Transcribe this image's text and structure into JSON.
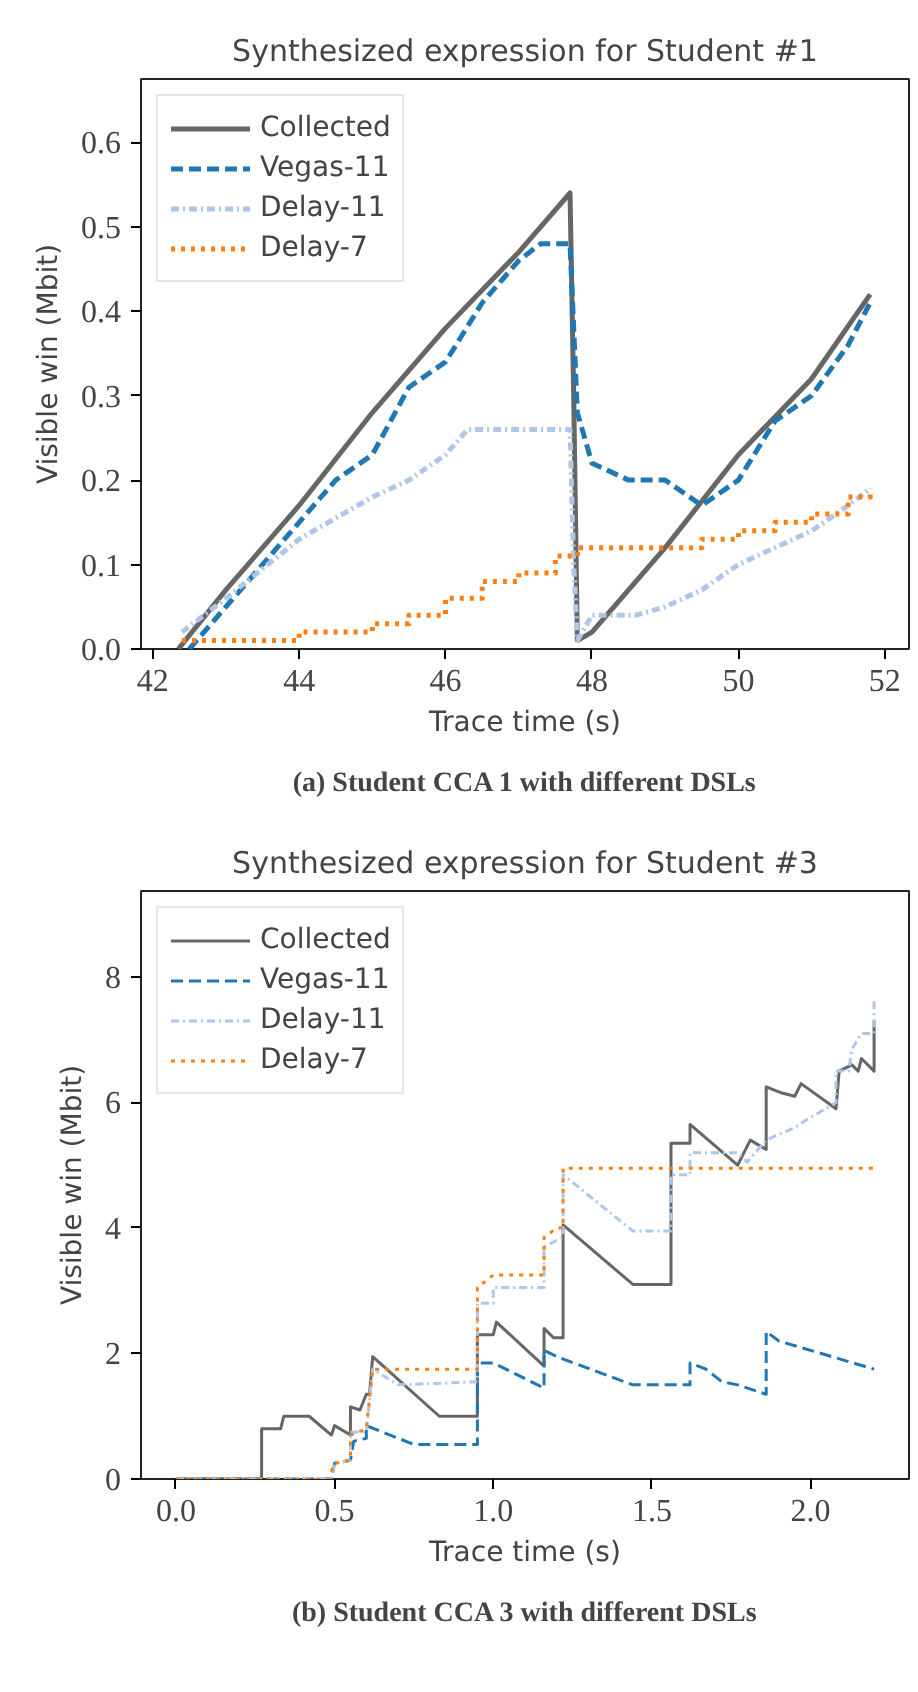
{
  "chart_data": [
    {
      "type": "line",
      "title": "Synthesized expression for Student #1",
      "xlabel": "Trace time (s)",
      "ylabel": "Visible win (Mbit)",
      "xlim": [
        41.84,
        52.33
      ],
      "ylim": [
        0,
        0.675
      ],
      "xticks": [
        42,
        44,
        46,
        48,
        50,
        52
      ],
      "yticks": [
        {
          "value": 0,
          "label": "0.0"
        },
        0.1,
        0.2,
        0.3,
        0.4,
        0.5,
        0.6
      ],
      "grid": false,
      "legend": "top left",
      "annotations": [
        "(a) Student CCA 1 with different DSLs"
      ],
      "series": [
        {
          "name": "Collected",
          "color": "#666666",
          "line_style": "solid",
          "x": [
            42.35,
            43,
            44,
            45,
            46,
            47,
            47.7,
            47.75,
            47.8,
            48,
            49,
            50,
            51,
            51.8
          ],
          "values": [
            0,
            0.07,
            0.17,
            0.28,
            0.38,
            0.47,
            0.54,
            0.3,
            0.01,
            0.02,
            0.12,
            0.23,
            0.32,
            0.42
          ]
        },
        {
          "name": "Vegas-11",
          "color": "#1f77b4",
          "line_style": "dashed",
          "x": [
            42.5,
            43,
            44,
            44.5,
            45,
            45.5,
            46,
            46.5,
            47,
            47.3,
            47.7,
            47.8,
            48,
            48.5,
            49,
            49.5,
            50,
            50.5,
            51,
            51.5,
            51.8
          ],
          "values": [
            0,
            0.05,
            0.15,
            0.2,
            0.23,
            0.31,
            0.34,
            0.41,
            0.46,
            0.48,
            0.48,
            0.28,
            0.22,
            0.2,
            0.2,
            0.17,
            0.2,
            0.27,
            0.3,
            0.36,
            0.41
          ]
        },
        {
          "name": "Delay-11",
          "color": "#aec7e8",
          "line_style": "dashdot",
          "x": [
            42.4,
            43,
            44,
            45,
            45.5,
            46,
            46.3,
            47.7,
            47.75,
            47.8,
            48,
            48.6,
            49,
            49.5,
            50,
            50.5,
            51,
            51.5,
            51.8
          ],
          "values": [
            0.02,
            0.06,
            0.13,
            0.18,
            0.2,
            0.23,
            0.26,
            0.26,
            0.1,
            0.01,
            0.04,
            0.04,
            0.05,
            0.07,
            0.1,
            0.12,
            0.14,
            0.17,
            0.19
          ]
        },
        {
          "name": "Delay-7",
          "type": "step",
          "color": "#ff7f0e",
          "line_style": "dotted",
          "x": [
            42.4,
            44,
            45,
            45.5,
            46,
            46.5,
            47,
            47.5,
            47.8,
            49,
            49.5,
            50,
            50.5,
            51,
            51.5,
            51.8
          ],
          "values": [
            0.01,
            0.02,
            0.03,
            0.04,
            0.06,
            0.08,
            0.09,
            0.11,
            0.12,
            0.12,
            0.13,
            0.14,
            0.15,
            0.16,
            0.18,
            0.19
          ]
        }
      ]
    },
    {
      "type": "line",
      "title": "Synthesized expression for Student #3",
      "xlabel": "Trace time (s)",
      "ylabel": "Visible win (Mbit)",
      "xlim": [
        -0.11,
        2.31
      ],
      "ylim": [
        0,
        9.37
      ],
      "xticks": [
        {
          "value": 0,
          "label": "0.0"
        },
        0.5,
        {
          "value": 1,
          "label": "1.0"
        },
        1.5,
        {
          "value": 2,
          "label": "2.0"
        }
      ],
      "yticks": [
        0,
        2,
        4,
        6,
        8
      ],
      "grid": false,
      "legend": "top left",
      "annotations": [
        "(b) Student CCA 3 with different DSLs"
      ],
      "series": [
        {
          "name": "Collected",
          "color": "#666666",
          "line_style": "solid",
          "x": [
            0,
            0.27,
            0.27,
            0.33,
            0.34,
            0.42,
            0.49,
            0.5,
            0.55,
            0.55,
            0.58,
            0.6,
            0.61,
            0.62,
            0.83,
            0.95,
            0.95,
            1.0,
            1.01,
            1.16,
            1.16,
            1.19,
            1.22,
            1.22,
            1.44,
            1.56,
            1.56,
            1.62,
            1.62,
            1.77,
            1.79,
            1.81,
            1.86,
            1.86,
            1.91,
            1.95,
            1.97,
            2.08,
            2.09,
            2.13,
            2.15,
            2.16,
            2.2,
            2.2
          ],
          "values": [
            0,
            0,
            0.8,
            0.8,
            1.0,
            1.0,
            0.7,
            0.85,
            0.7,
            1.15,
            1.1,
            1.35,
            1.35,
            1.95,
            1.0,
            1.0,
            2.3,
            2.3,
            2.5,
            1.8,
            2.4,
            2.25,
            2.25,
            4.05,
            3.1,
            3.1,
            5.35,
            5.35,
            5.65,
            5.0,
            5.2,
            5.4,
            5.25,
            6.25,
            6.15,
            6.1,
            6.3,
            5.9,
            6.5,
            6.6,
            6.5,
            6.7,
            6.5,
            7.3
          ]
        },
        {
          "name": "Vegas-11",
          "color": "#1f77b4",
          "line_style": "dashed",
          "x": [
            0,
            0.49,
            0.5,
            0.55,
            0.56,
            0.6,
            0.6,
            0.75,
            0.95,
            0.95,
            1.0,
            1.16,
            1.16,
            1.2,
            1.44,
            1.62,
            1.62,
            1.67,
            1.72,
            1.77,
            1.86,
            1.86,
            1.9,
            2.2
          ],
          "values": [
            0,
            0,
            0.25,
            0.3,
            0.6,
            0.65,
            0.85,
            0.55,
            0.55,
            1.85,
            1.85,
            1.45,
            2.05,
            1.95,
            1.5,
            1.5,
            1.85,
            1.75,
            1.55,
            1.5,
            1.35,
            2.35,
            2.2,
            1.75
          ]
        },
        {
          "name": "Delay-11",
          "color": "#aec7e8",
          "line_style": "dashdot",
          "x": [
            0,
            0.49,
            0.5,
            0.55,
            0.55,
            0.6,
            0.62,
            0.7,
            0.95,
            0.95,
            1.0,
            1.0,
            1.16,
            1.16,
            1.22,
            1.22,
            1.44,
            1.56,
            1.56,
            1.62,
            1.62,
            1.77,
            1.8,
            1.86,
            1.95,
            1.98,
            2.08,
            2.08,
            2.12,
            2.13,
            2.16,
            2.2,
            2.2
          ],
          "values": [
            0,
            0,
            0.25,
            0.3,
            0.75,
            0.75,
            1.75,
            1.5,
            1.55,
            2.8,
            2.8,
            3.05,
            3.05,
            3.7,
            3.85,
            4.85,
            3.95,
            3.95,
            4.85,
            4.85,
            5.2,
            5.2,
            5.05,
            5.4,
            5.6,
            5.7,
            6.0,
            6.5,
            6.5,
            6.85,
            7.1,
            7.1,
            7.65
          ]
        },
        {
          "name": "Delay-7",
          "color": "#ff7f0e",
          "line_style": "dotted",
          "x": [
            0,
            0.48,
            0.5,
            0.55,
            0.55,
            0.6,
            0.62,
            0.95,
            0.95,
            1.0,
            1.16,
            1.16,
            1.2,
            1.22,
            1.22,
            2.2
          ],
          "values": [
            0,
            0,
            0.25,
            0.3,
            0.7,
            0.8,
            1.75,
            1.75,
            3.05,
            3.25,
            3.25,
            3.85,
            4.0,
            4.0,
            4.95,
            4.95
          ]
        }
      ]
    }
  ]
}
